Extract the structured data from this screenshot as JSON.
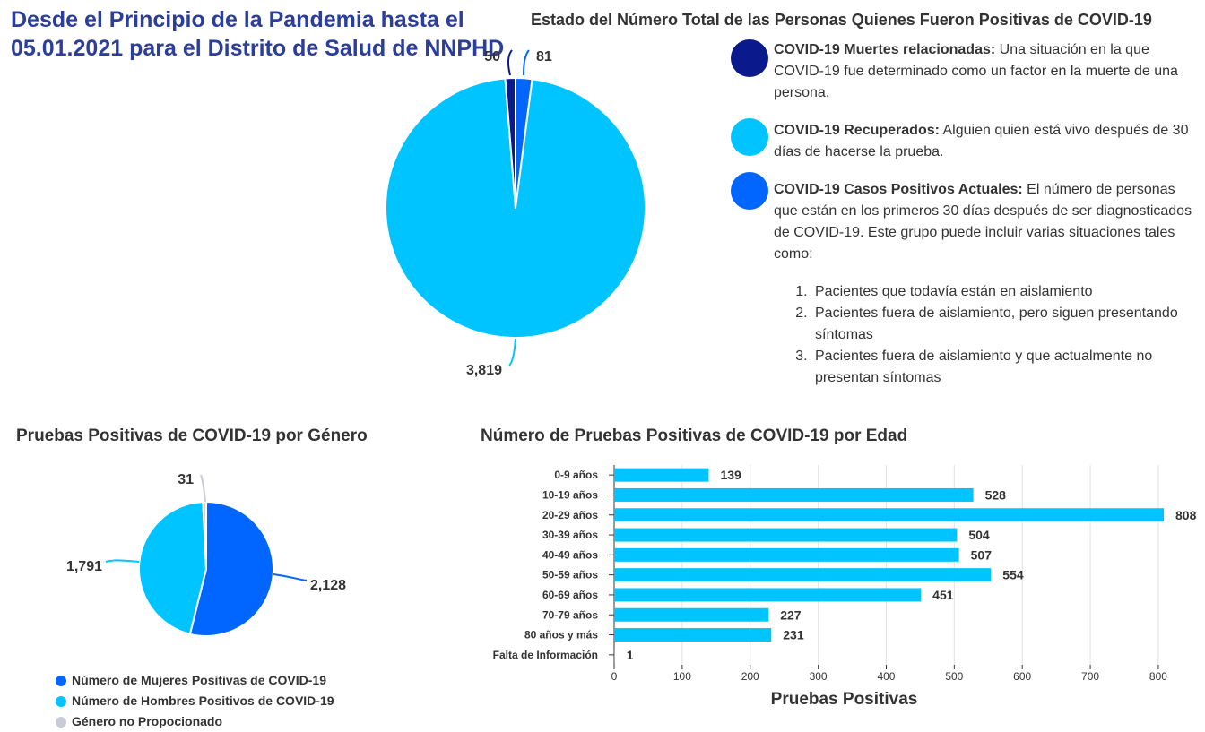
{
  "title": "Desde el Principio de la Pandemia hasta el 05.01.2021 para el Distrito de Salud de NNPHD",
  "colors": {
    "title": "#2b3e9a",
    "deaths": "#0a1a8c",
    "recovered": "#00c4ff",
    "active": "#0066ff",
    "not_provided": "#c8cbd6"
  },
  "definitions": [
    {
      "term": "COVID-19 Muertes relacionadas:",
      "text": " Una situación en la que COVID-19 fue determinado como un factor en la muerte de una persona.",
      "color": "#0a1a8c"
    },
    {
      "term": "COVID-19 Recuperados:",
      "text": " Alguien quien está vivo después de 30 días de hacerse la prueba.",
      "color": "#00c4ff"
    },
    {
      "term": "COVID-19 Casos Positivos Actuales:",
      "text": " El número de personas que están en los primeros 30 días después de ser diagnosticados de COVID-19. Este grupo puede incluir varias situaciones tales como:",
      "color": "#0066ff",
      "list": [
        "Pacientes que todavía están en aislamiento",
        "Pacientes fuera de aislamiento, pero siguen presentando síntomas",
        "Pacientes fuera de aislamiento y que actualmente no presentan síntomas"
      ]
    }
  ],
  "chart_data": [
    {
      "type": "pie",
      "title": "Estado del Número Total de las Personas Quienes Fueron Positivas de COVID-19",
      "labels": [
        "COVID-19 Muertes relacionadas",
        "COVID-19 Recuperados",
        "COVID-19 Casos Positivos Actuales"
      ],
      "values": [
        50,
        3819,
        81
      ],
      "value_labels": [
        "50",
        "3,819",
        "81"
      ],
      "colors": [
        "#0a1a8c",
        "#00c4ff",
        "#0066ff"
      ],
      "start_order": [
        "COVID-19 Casos Positivos Actuales",
        "COVID-19 Recuperados",
        "COVID-19 Muertes relacionadas"
      ]
    },
    {
      "type": "pie",
      "title": "Pruebas Positivas de COVID-19 por Género",
      "labels": [
        "Número de Mujeres Positivas de COVID-19",
        "Número de Hombres Positivos de COVID-19",
        "Género no Propocionado"
      ],
      "values": [
        2128,
        1791,
        31
      ],
      "value_labels": [
        "2,128",
        "1,791",
        "31"
      ],
      "colors": [
        "#0066ff",
        "#00c4ff",
        "#c8cbd6"
      ],
      "legend_position": "bottom-left"
    },
    {
      "type": "bar",
      "orientation": "horizontal",
      "title": "Número de Pruebas Positivas de COVID-19 por Edad",
      "categories": [
        "0-9 años",
        "10-19 años",
        "20-29 años",
        "30-39 años",
        "40-49 años",
        "50-59 años",
        "60-69 años",
        "70-79 años",
        "80 años y más",
        "Falta de Información"
      ],
      "values": [
        139,
        528,
        808,
        504,
        507,
        554,
        451,
        227,
        231,
        1
      ],
      "xlabel": "Pruebas Positivas",
      "ylabel": "",
      "xlim": [
        0,
        808
      ],
      "xticks": [
        0,
        100,
        200,
        300,
        400,
        500,
        600,
        700,
        800
      ],
      "grid": true,
      "color": "#00c4ff"
    }
  ]
}
